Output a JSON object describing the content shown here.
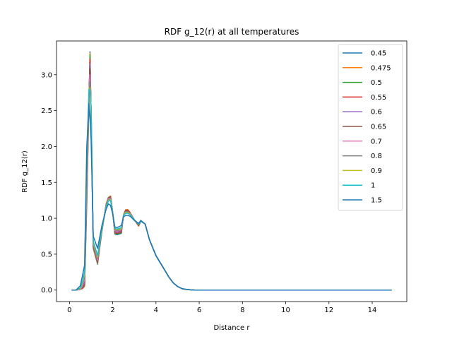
{
  "chart_data": {
    "type": "line",
    "title": "RDF g_12(r) at all temperatures",
    "xlabel": "Distance r",
    "ylabel": "RDF g_12(r)",
    "xlim": [
      -0.6,
      15.6
    ],
    "ylim": [
      -0.16,
      3.47
    ],
    "xticks": [
      {
        "value": 0,
        "label": "0"
      },
      {
        "value": 2,
        "label": "2"
      },
      {
        "value": 4,
        "label": "4"
      },
      {
        "value": 6,
        "label": "6"
      },
      {
        "value": 8,
        "label": "8"
      },
      {
        "value": 10,
        "label": "10"
      },
      {
        "value": 12,
        "label": "12"
      },
      {
        "value": 14,
        "label": "14"
      }
    ],
    "yticks": [
      {
        "value": 0.0,
        "label": "0.0"
      },
      {
        "value": 0.5,
        "label": "0.5"
      },
      {
        "value": 1.0,
        "label": "1.0"
      },
      {
        "value": 1.5,
        "label": "1.5"
      },
      {
        "value": 2.0,
        "label": "2.0"
      },
      {
        "value": 2.5,
        "label": "2.5"
      },
      {
        "value": 3.0,
        "label": "3.0"
      }
    ],
    "grid": false,
    "legend_position": "top-right",
    "x": [
      0.1,
      0.3,
      0.5,
      0.6,
      0.7,
      0.8,
      0.9,
      0.95,
      1.0,
      1.1,
      1.3,
      1.5,
      1.7,
      1.8,
      1.9,
      2.0,
      2.1,
      2.2,
      2.4,
      2.5,
      2.6,
      2.7,
      2.8,
      3.0,
      3.2,
      3.3,
      3.5,
      3.7,
      4.0,
      4.3,
      4.6,
      4.8,
      5.0,
      5.2,
      5.4,
      5.6,
      5.8,
      6.0,
      7.0,
      8.0,
      9.0,
      10.0,
      11.0,
      12.0,
      13.0,
      14.0,
      14.9
    ],
    "series": [
      {
        "name": "0.45",
        "color": "#1f77b4",
        "values": [
          0,
          0,
          0.01,
          0.02,
          0.05,
          1.2,
          2.6,
          3.32,
          2.4,
          0.58,
          0.36,
          0.82,
          1.2,
          1.29,
          1.31,
          1.08,
          0.78,
          0.77,
          0.79,
          1.05,
          1.12,
          1.12,
          1.08,
          0.98,
          0.89,
          0.96,
          0.92,
          0.7,
          0.48,
          0.33,
          0.18,
          0.1,
          0.05,
          0.02,
          0.01,
          0.003,
          0,
          0,
          0,
          0,
          0,
          0,
          0,
          0,
          0,
          0,
          0
        ]
      },
      {
        "name": "0.475",
        "color": "#ff7f0e",
        "values": [
          0,
          0,
          0.01,
          0.02,
          0.06,
          1.25,
          2.62,
          3.3,
          2.42,
          0.59,
          0.37,
          0.82,
          1.2,
          1.29,
          1.31,
          1.08,
          0.79,
          0.78,
          0.8,
          1.05,
          1.12,
          1.12,
          1.08,
          0.98,
          0.89,
          0.96,
          0.92,
          0.7,
          0.48,
          0.33,
          0.18,
          0.1,
          0.05,
          0.02,
          0.01,
          0.003,
          0,
          0,
          0,
          0,
          0,
          0,
          0,
          0,
          0,
          0,
          0
        ]
      },
      {
        "name": "0.5",
        "color": "#2ca02c",
        "values": [
          0,
          0,
          0.01,
          0.03,
          0.07,
          1.3,
          2.64,
          3.28,
          2.44,
          0.6,
          0.38,
          0.82,
          1.2,
          1.29,
          1.3,
          1.08,
          0.79,
          0.78,
          0.8,
          1.05,
          1.11,
          1.11,
          1.08,
          0.98,
          0.9,
          0.96,
          0.92,
          0.7,
          0.48,
          0.33,
          0.18,
          0.1,
          0.05,
          0.02,
          0.01,
          0.003,
          0,
          0,
          0,
          0,
          0,
          0,
          0,
          0,
          0,
          0,
          0
        ]
      },
      {
        "name": "0.55",
        "color": "#d62728",
        "values": [
          0,
          0,
          0.01,
          0.03,
          0.08,
          1.35,
          2.66,
          3.22,
          2.46,
          0.61,
          0.39,
          0.83,
          1.2,
          1.28,
          1.3,
          1.08,
          0.8,
          0.79,
          0.81,
          1.05,
          1.11,
          1.11,
          1.08,
          0.98,
          0.9,
          0.96,
          0.92,
          0.7,
          0.48,
          0.33,
          0.18,
          0.1,
          0.05,
          0.02,
          0.01,
          0.003,
          0,
          0,
          0,
          0,
          0,
          0,
          0,
          0,
          0,
          0,
          0
        ]
      },
      {
        "name": "0.6",
        "color": "#9467bd",
        "values": [
          0,
          0,
          0.01,
          0.04,
          0.1,
          1.4,
          2.68,
          3.15,
          2.48,
          0.62,
          0.4,
          0.83,
          1.19,
          1.28,
          1.29,
          1.08,
          0.81,
          0.8,
          0.82,
          1.05,
          1.1,
          1.1,
          1.07,
          0.98,
          0.9,
          0.96,
          0.92,
          0.7,
          0.48,
          0.33,
          0.18,
          0.1,
          0.05,
          0.02,
          0.01,
          0.003,
          0,
          0,
          0,
          0,
          0,
          0,
          0,
          0,
          0,
          0,
          0
        ]
      },
      {
        "name": "0.65",
        "color": "#8c564b",
        "values": [
          0,
          0,
          0.01,
          0.05,
          0.12,
          1.45,
          2.7,
          3.08,
          2.5,
          0.63,
          0.41,
          0.84,
          1.19,
          1.27,
          1.29,
          1.08,
          0.82,
          0.81,
          0.83,
          1.05,
          1.1,
          1.1,
          1.07,
          0.98,
          0.9,
          0.96,
          0.92,
          0.7,
          0.48,
          0.33,
          0.18,
          0.1,
          0.05,
          0.02,
          0.01,
          0.003,
          0,
          0,
          0,
          0,
          0,
          0,
          0,
          0,
          0,
          0,
          0
        ]
      },
      {
        "name": "0.7",
        "color": "#e377c2",
        "values": [
          0,
          0,
          0.01,
          0.06,
          0.14,
          1.5,
          2.72,
          3.0,
          2.52,
          0.64,
          0.42,
          0.84,
          1.18,
          1.27,
          1.28,
          1.08,
          0.83,
          0.82,
          0.84,
          1.05,
          1.09,
          1.09,
          1.07,
          0.98,
          0.91,
          0.96,
          0.92,
          0.7,
          0.48,
          0.33,
          0.18,
          0.1,
          0.05,
          0.02,
          0.01,
          0.003,
          0,
          0,
          0,
          0,
          0,
          0,
          0,
          0,
          0,
          0,
          0
        ]
      },
      {
        "name": "0.8",
        "color": "#7f7f7f",
        "values": [
          0,
          0,
          0.02,
          0.08,
          0.18,
          1.6,
          2.74,
          2.9,
          2.54,
          0.65,
          0.44,
          0.85,
          1.18,
          1.26,
          1.27,
          1.08,
          0.84,
          0.83,
          0.85,
          1.05,
          1.09,
          1.09,
          1.06,
          0.98,
          0.91,
          0.96,
          0.92,
          0.7,
          0.48,
          0.33,
          0.18,
          0.1,
          0.05,
          0.02,
          0.01,
          0.003,
          0,
          0,
          0,
          0,
          0,
          0,
          0,
          0,
          0,
          0,
          0
        ]
      },
      {
        "name": "0.9",
        "color": "#bcbd22",
        "values": [
          0,
          0,
          0.02,
          0.1,
          0.22,
          1.7,
          2.76,
          2.82,
          2.55,
          0.66,
          0.46,
          0.85,
          1.17,
          1.25,
          1.26,
          1.08,
          0.85,
          0.84,
          0.86,
          1.05,
          1.08,
          1.08,
          1.06,
          0.98,
          0.92,
          0.96,
          0.92,
          0.7,
          0.48,
          0.33,
          0.18,
          0.1,
          0.05,
          0.02,
          0.01,
          0.003,
          0,
          0,
          0,
          0,
          0,
          0,
          0,
          0,
          0,
          0,
          0
        ]
      },
      {
        "name": "1",
        "color": "#17becf",
        "values": [
          0,
          0,
          0.03,
          0.12,
          0.26,
          1.8,
          2.8,
          2.78,
          2.56,
          0.68,
          0.48,
          0.86,
          1.16,
          1.24,
          1.25,
          1.07,
          0.86,
          0.85,
          0.87,
          1.04,
          1.07,
          1.07,
          1.05,
          0.98,
          0.92,
          0.96,
          0.92,
          0.7,
          0.48,
          0.33,
          0.18,
          0.1,
          0.05,
          0.02,
          0.01,
          0.003,
          0,
          0,
          0,
          0,
          0,
          0,
          0,
          0,
          0,
          0,
          0
        ]
      },
      {
        "name": "1.5",
        "color": "#1f77b4",
        "values": [
          0,
          0,
          0.06,
          0.2,
          0.35,
          2.0,
          2.6,
          2.4,
          2.1,
          0.75,
          0.58,
          0.9,
          1.13,
          1.2,
          1.18,
          1.06,
          0.88,
          0.87,
          0.9,
          1.02,
          1.04,
          1.04,
          1.03,
          0.97,
          0.93,
          0.97,
          0.92,
          0.7,
          0.48,
          0.33,
          0.18,
          0.1,
          0.05,
          0.02,
          0.01,
          0.003,
          0,
          0,
          0,
          0,
          0,
          0,
          0,
          0,
          0,
          0,
          0
        ]
      }
    ]
  }
}
